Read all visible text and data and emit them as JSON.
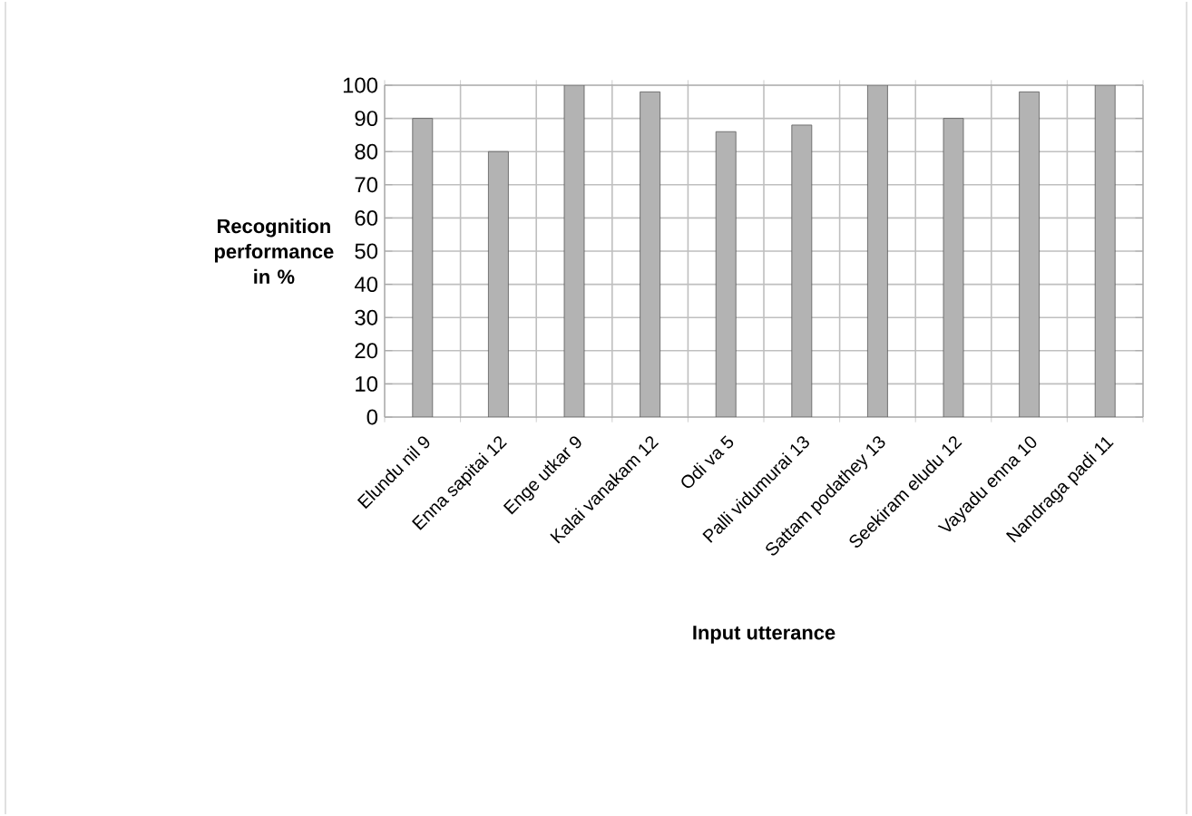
{
  "chart_data": {
    "type": "bar",
    "xlabel": "Input utterance",
    "ylabel": "Recognition performance in %",
    "categories": [
      "Elundu nil 9",
      "Enna sapitai 12",
      "Enge utkar 9",
      "Kalai vanakam 12",
      "Odi va 5",
      "Palli vidumurai 13",
      "Sattam podathey 13",
      "Seekiram eludu 12",
      "Vayadu enna 10",
      "Nandraga padi 11"
    ],
    "values": [
      90,
      80,
      100,
      98,
      86,
      88,
      100,
      90,
      98,
      100
    ],
    "color": "#b3b3b3",
    "ylim": [
      0,
      100
    ],
    "yticks": [
      0,
      10,
      20,
      30,
      40,
      50,
      60,
      70,
      80,
      90,
      100
    ],
    "grid": true
  }
}
